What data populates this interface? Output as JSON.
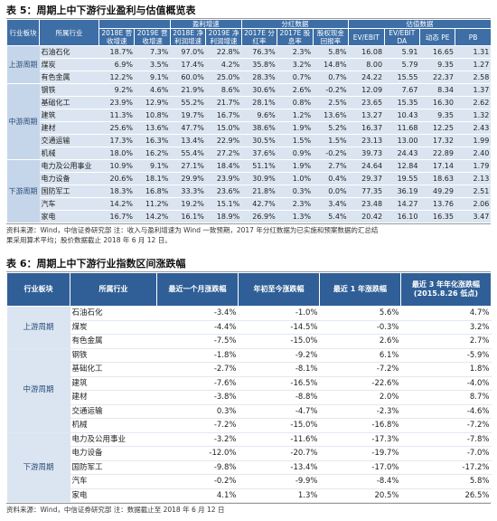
{
  "table5": {
    "title": "表 5：周期上中下游行业盈利与估值概览表",
    "group_headers": [
      "盈利增速",
      "分红数据",
      "估值数据"
    ],
    "headers": [
      "行业板块",
      "所属行业",
      "2018E 营收增速",
      "2019E 营收增速",
      "2018E 净利润增速",
      "2019E 净利润增速",
      "2017E 分红率",
      "2017E 股息率",
      "股权现金回报率",
      "EV/EBIT",
      "EV/EBIT DA",
      "动态 PE",
      "PB"
    ],
    "groups": [
      {
        "label": "上游周期",
        "rows": [
          [
            "石油石化",
            "18.7%",
            "7.3%",
            "97.0%",
            "22.8%",
            "76.3%",
            "2.3%",
            "5.8%",
            "16.08",
            "5.91",
            "16.65",
            "1.31"
          ],
          [
            "煤炭",
            "6.9%",
            "3.5%",
            "17.4%",
            "4.2%",
            "35.8%",
            "3.2%",
            "14.8%",
            "8.00",
            "5.79",
            "9.35",
            "1.27"
          ],
          [
            "有色金属",
            "12.2%",
            "9.1%",
            "60.0%",
            "25.0%",
            "28.3%",
            "0.7%",
            "0.7%",
            "24.22",
            "15.55",
            "22.37",
            "2.58"
          ]
        ]
      },
      {
        "label": "中游周期",
        "rows": [
          [
            "钢铁",
            "9.2%",
            "4.6%",
            "21.9%",
            "8.6%",
            "30.6%",
            "2.6%",
            "-0.2%",
            "12.09",
            "7.67",
            "8.34",
            "1.37"
          ],
          [
            "基础化工",
            "23.9%",
            "12.9%",
            "55.2%",
            "21.7%",
            "28.1%",
            "0.8%",
            "2.5%",
            "23.65",
            "15.35",
            "16.30",
            "2.62"
          ],
          [
            "建筑",
            "11.3%",
            "10.8%",
            "19.7%",
            "16.7%",
            "9.6%",
            "1.2%",
            "13.6%",
            "13.27",
            "10.43",
            "9.35",
            "1.32"
          ],
          [
            "建材",
            "25.6%",
            "13.6%",
            "47.7%",
            "15.0%",
            "38.6%",
            "1.9%",
            "5.2%",
            "16.37",
            "11.68",
            "12.25",
            "2.43"
          ],
          [
            "交通运输",
            "17.3%",
            "16.3%",
            "13.4%",
            "22.9%",
            "30.5%",
            "1.5%",
            "1.5%",
            "23.13",
            "13.00",
            "17.32",
            "1.99"
          ],
          [
            "机械",
            "18.0%",
            "16.2%",
            "55.4%",
            "27.2%",
            "37.6%",
            "0.9%",
            "-0.2%",
            "39.73",
            "24.43",
            "22.89",
            "2.40"
          ]
        ]
      },
      {
        "label": "下游周期",
        "rows": [
          [
            "电力及公用事业",
            "10.9%",
            "9.1%",
            "27.1%",
            "18.4%",
            "51.1%",
            "1.9%",
            "2.7%",
            "24.64",
            "12.84",
            "17.14",
            "1.79"
          ],
          [
            "电力设备",
            "20.6%",
            "18.1%",
            "29.9%",
            "23.9%",
            "30.9%",
            "1.0%",
            "0.4%",
            "29.37",
            "19.55",
            "18.63",
            "2.13"
          ],
          [
            "国防军工",
            "18.3%",
            "16.8%",
            "33.3%",
            "23.6%",
            "21.8%",
            "0.3%",
            "0.0%",
            "77.35",
            "36.19",
            "49.29",
            "2.51"
          ],
          [
            "汽车",
            "14.2%",
            "11.2%",
            "19.2%",
            "15.1%",
            "42.7%",
            "2.3%",
            "3.4%",
            "23.48",
            "14.27",
            "13.76",
            "2.06"
          ],
          [
            "家电",
            "16.7%",
            "14.2%",
            "16.1%",
            "18.9%",
            "26.9%",
            "1.3%",
            "5.4%",
            "20.42",
            "16.10",
            "16.35",
            "3.47"
          ]
        ]
      }
    ],
    "source": [
      "资料来源：Wind，中信证券研究部   注：收入与盈利增速为 Wind 一致预期，2017 年分红数据为已实施和预案数据的汇总结",
      "果采用算术平均；股价数据截止 2018 年 6 月 12 日。"
    ]
  },
  "table6": {
    "title": "表 6：周期上中下游行业指数区间涨跌幅",
    "headers": [
      "行业板块",
      "所属行业",
      "最近一个月涨跌幅",
      "年初至今涨跌幅",
      "最近 1 年涨跌幅",
      "最近 3 年年化涨跌幅(2015.8.26 低点)"
    ],
    "groups": [
      {
        "label": "上游周期",
        "rows": [
          [
            "石油石化",
            "-3.4%",
            "-1.0%",
            "5.6%",
            "4.7%"
          ],
          [
            "煤炭",
            "-4.4%",
            "-14.5%",
            "-0.3%",
            "3.2%"
          ],
          [
            "有色金属",
            "-7.5%",
            "-15.0%",
            "2.6%",
            "2.7%"
          ]
        ]
      },
      {
        "label": "中游周期",
        "rows": [
          [
            "钢铁",
            "-1.8%",
            "-9.2%",
            "6.1%",
            "-5.9%"
          ],
          [
            "基础化工",
            "-2.7%",
            "-8.1%",
            "-7.2%",
            "1.8%"
          ],
          [
            "建筑",
            "-7.6%",
            "-16.5%",
            "-22.6%",
            "-4.0%"
          ],
          [
            "建材",
            "-3.8%",
            "-8.8%",
            "2.0%",
            "8.7%"
          ],
          [
            "交通运输",
            "0.3%",
            "-4.7%",
            "-2.3%",
            "-4.6%"
          ],
          [
            "机械",
            "-7.2%",
            "-15.0%",
            "-16.8%",
            "-7.2%"
          ]
        ]
      },
      {
        "label": "下游周期",
        "rows": [
          [
            "电力及公用事业",
            "-3.2%",
            "-11.6%",
            "-17.3%",
            "-7.8%"
          ],
          [
            "电力设备",
            "-12.0%",
            "-20.7%",
            "-19.7%",
            "-7.0%"
          ],
          [
            "国防军工",
            "-9.8%",
            "-13.4%",
            "-17.0%",
            "-17.2%"
          ],
          [
            "汽车",
            "-0.2%",
            "-9.9%",
            "-8.4%",
            "5.8%"
          ],
          [
            "家电",
            "4.1%",
            "1.3%",
            "20.5%",
            "26.5%"
          ]
        ]
      }
    ],
    "source": "资料来源：Wind，中信证券研究部   注：数据截止至 2018 年 6 月 12 日"
  }
}
